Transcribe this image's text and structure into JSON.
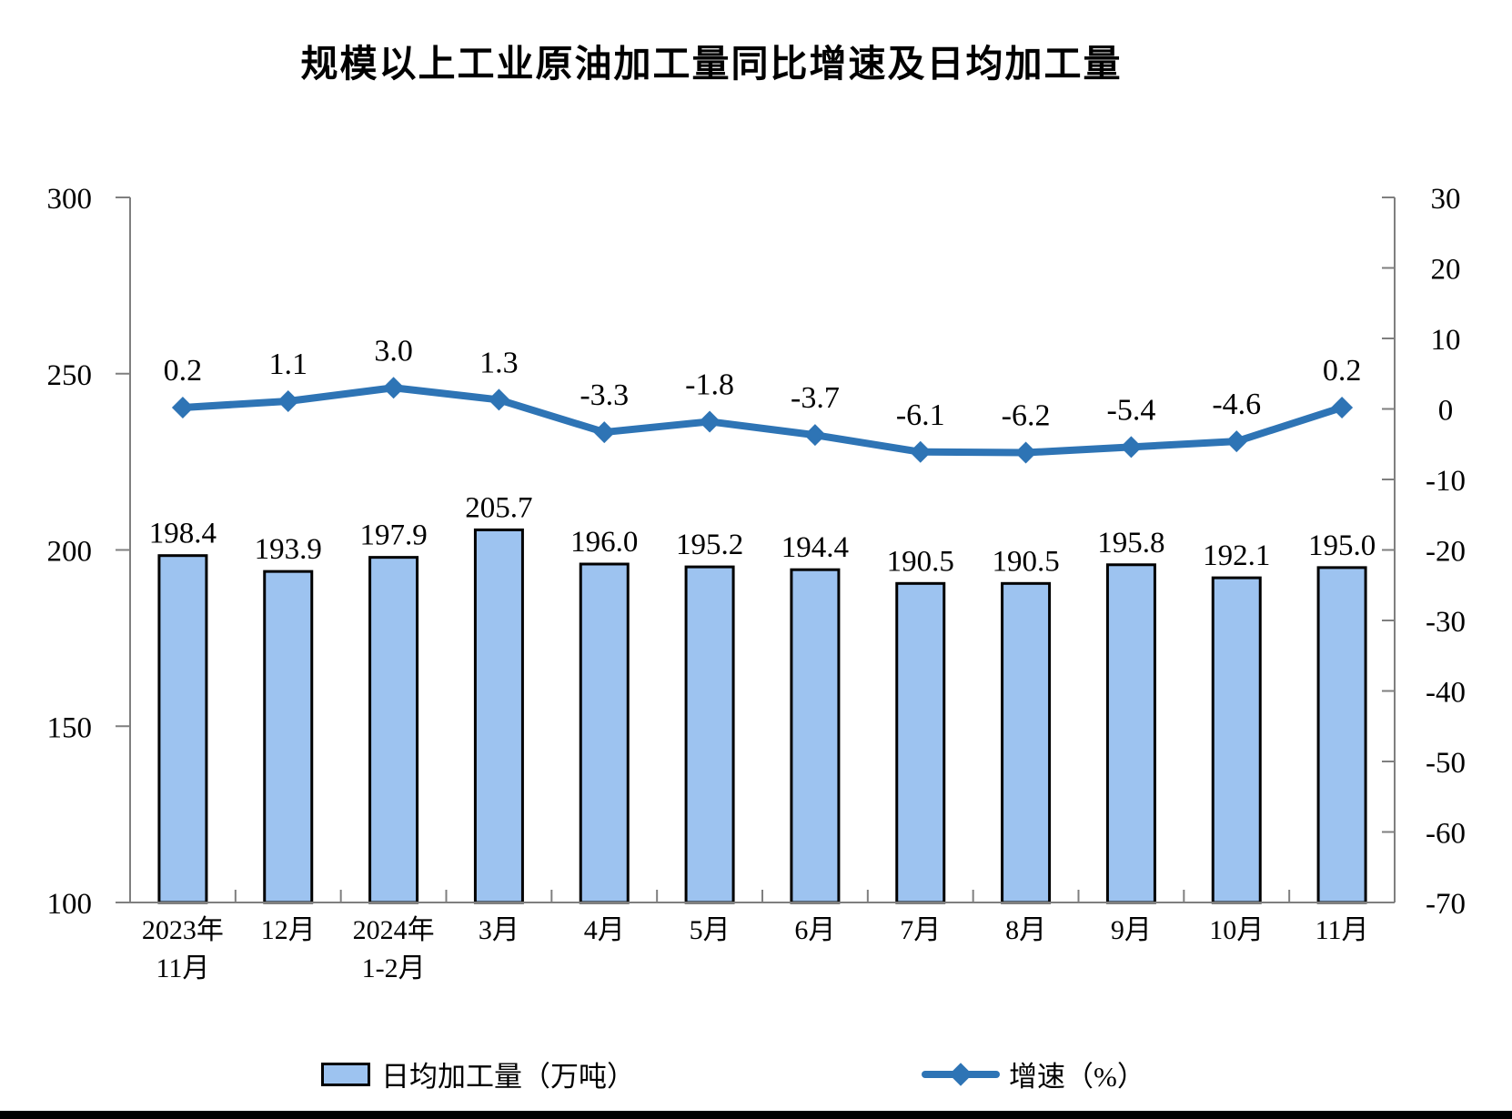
{
  "chart_data": {
    "type": "bar+line",
    "title": "规模以上工业原油加工量同比增速及日均加工量",
    "categories": [
      [
        "2023年",
        "11月"
      ],
      [
        "12月"
      ],
      [
        "2024年",
        "1-2月"
      ],
      [
        "3月"
      ],
      [
        "4月"
      ],
      [
        "5月"
      ],
      [
        "6月"
      ],
      [
        "7月"
      ],
      [
        "8月"
      ],
      [
        "9月"
      ],
      [
        "10月"
      ],
      [
        "11月"
      ]
    ],
    "series": [
      {
        "name": "日均加工量（万吨）",
        "type": "bar",
        "axis": "left",
        "values": [
          198.4,
          193.9,
          197.9,
          205.7,
          196.0,
          195.2,
          194.4,
          190.5,
          190.5,
          195.8,
          192.1,
          195.0
        ],
        "labels": [
          "198.4",
          "193.9",
          "197.9",
          "205.7",
          "196.0",
          "195.2",
          "194.4",
          "190.5",
          "190.5",
          "195.8",
          "192.1",
          "195.0"
        ]
      },
      {
        "name": "增速（%）",
        "type": "line",
        "axis": "right",
        "values": [
          0.2,
          1.1,
          3.0,
          1.3,
          -3.3,
          -1.8,
          -3.7,
          -6.1,
          -6.2,
          -5.4,
          -4.6,
          0.2
        ],
        "labels": [
          "0.2",
          "1.1",
          "3.0",
          "1.3",
          "-3.3",
          "-1.8",
          "-3.7",
          "-6.1",
          "-6.2",
          "-5.4",
          "-4.6",
          "0.2"
        ]
      }
    ],
    "left_axis": {
      "min": 100,
      "max": 300,
      "ticks": [
        300,
        250,
        200,
        150,
        100
      ]
    },
    "right_axis": {
      "min": -70,
      "max": 30,
      "ticks": [
        30,
        20,
        10,
        0,
        -10,
        -20,
        -30,
        -40,
        -50,
        -60,
        -70
      ]
    },
    "legend": [
      {
        "label": "日均加工量（万吨）"
      },
      {
        "label": "增速（%）"
      }
    ],
    "colors": {
      "bar_fill": "#9DC3F0",
      "bar_stroke": "#000000",
      "line": "#2E74B5",
      "axis": "#7F7F7F",
      "text": "#000000"
    },
    "grid": false,
    "legend_position": "bottom"
  }
}
